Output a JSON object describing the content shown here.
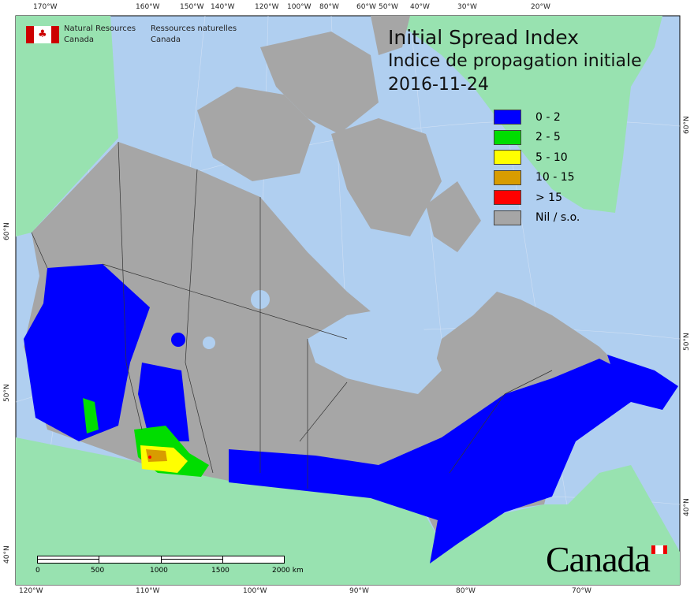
{
  "header": {
    "agency_en_line1": "Natural Resources",
    "agency_en_line2": "Canada",
    "agency_fr_line1": "Ressources naturelles",
    "agency_fr_line2": "Canada"
  },
  "title": {
    "en": "Initial Spread Index",
    "fr": "Indice de propagation initiale",
    "date": "2016-11-24"
  },
  "legend": [
    {
      "label": "0 - 2",
      "color": "#0000ff"
    },
    {
      "label": "2 - 5",
      "color": "#00dd00"
    },
    {
      "label": "5 - 10",
      "color": "#ffff00"
    },
    {
      "label": "10 - 15",
      "color": "#d89c00"
    },
    {
      "label": "> 15",
      "color": "#ff0000"
    },
    {
      "label": "Nil / s.o.",
      "color": "#a6a6a6"
    }
  ],
  "top_ticks": [
    "170°W",
    "160°W",
    "150°W",
    "140°W",
    "120°W",
    "100°W",
    "80°W",
    "60°W",
    "50°W",
    "40°W",
    "30°W",
    "20°W"
  ],
  "bottom_ticks": [
    "120°W",
    "110°W",
    "100°W",
    "90°W",
    "80°W",
    "70°W"
  ],
  "left_ticks": [
    "60°N",
    "50°N",
    "40°N"
  ],
  "right_ticks": [
    "60°N",
    "50°N",
    "40°N"
  ],
  "scale": {
    "labels": [
      "0",
      "500",
      "1000",
      "1500",
      "2000 km"
    ]
  },
  "wordmark": "Canada",
  "colors": {
    "ocean": "#b0cff0",
    "land": "#98e2b0",
    "nodata": "#a6a6a6"
  }
}
